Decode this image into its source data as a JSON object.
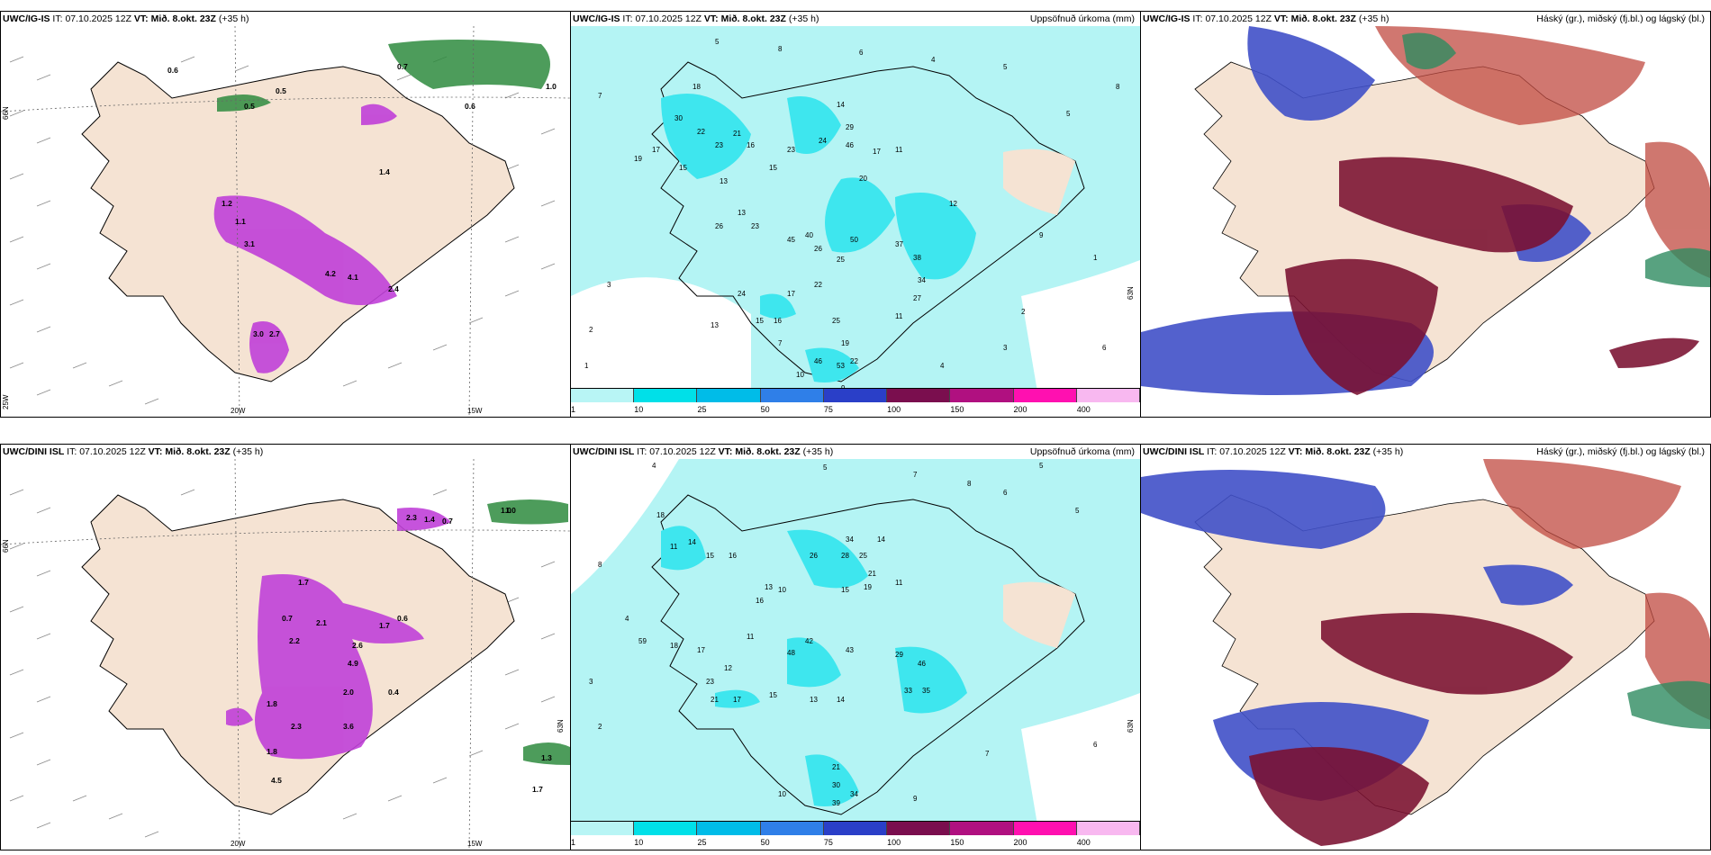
{
  "panels": [
    {
      "id": "p1",
      "model": "UWC/IG-IS",
      "init_label": "IT:",
      "init_time": "07.10.2025 12Z",
      "valid_label": "VT:",
      "valid_time": "Mið. 8.okt. 23Z",
      "lead": "(+35 h)",
      "subtitle": "",
      "lon_labels": [
        "20W",
        "15W"
      ],
      "lat_labels": [
        "66N",
        "25W"
      ],
      "values": [
        "1.2",
        "1.1",
        "3.1",
        "4.2",
        "4.1",
        "3.0",
        "2.7",
        "0.7",
        "0.6",
        "0.5",
        "1.0",
        "0.6",
        "0.5",
        "2.4",
        "1.4"
      ]
    },
    {
      "id": "p2",
      "model": "UWC/IG-IS",
      "init_label": "IT:",
      "init_time": "07.10.2025 12Z",
      "valid_label": "VT:",
      "valid_time": "Mið. 8.okt. 23Z",
      "lead": "(+35 h)",
      "subtitle": "Uppsöfnuð úrkoma (mm)",
      "lat_labels": [
        "63N"
      ],
      "values": [
        "7",
        "5",
        "8",
        "6",
        "4",
        "5",
        "18",
        "30",
        "22",
        "23",
        "21",
        "16",
        "15",
        "17",
        "19",
        "13",
        "15",
        "23",
        "14",
        "24",
        "29",
        "46",
        "17",
        "20",
        "13",
        "26",
        "23",
        "40",
        "45",
        "26",
        "25",
        "50",
        "37",
        "38",
        "34",
        "27",
        "22",
        "17",
        "24",
        "16",
        "15",
        "13",
        "11",
        "25",
        "19",
        "22",
        "46",
        "53",
        "10",
        "9",
        "7",
        "3",
        "2",
        "1",
        "4",
        "5",
        "6",
        "3",
        "2",
        "1",
        "8",
        "9",
        "11",
        "12"
      ]
    },
    {
      "id": "p3",
      "model": "UWC/IG-IS",
      "init_label": "IT:",
      "init_time": "07.10.2025 12Z",
      "valid_label": "VT:",
      "valid_time": "Mið. 8.okt. 23Z",
      "lead": "(+35 h)",
      "subtitle": "Háský (gr.), miðský (fj.bl.) og lágský (bl.)"
    },
    {
      "id": "p4",
      "model": "UWC/DINI ISL",
      "init_label": "IT:",
      "init_time": "07.10.2025 12Z",
      "valid_label": "VT:",
      "valid_time": "Mið. 8.okt. 23Z",
      "lead": "(+35 h)",
      "subtitle": "",
      "lon_labels": [
        "20W",
        "15W"
      ],
      "lat_labels": [
        "66N",
        "63N"
      ],
      "values": [
        "1.0",
        "2.3",
        "1.4",
        "0.7",
        "1.7",
        "0.7",
        "2.1",
        "1.7",
        "2.2",
        "2.6",
        "0.6",
        "4.9",
        "2.0",
        "0.4",
        "1.8",
        "2.3",
        "3.6",
        "1.8",
        "4.5",
        "1.3",
        "1.7",
        "1.0"
      ]
    },
    {
      "id": "p5",
      "model": "UWC/DINI ISL",
      "init_label": "IT:",
      "init_time": "07.10.2025 12Z",
      "valid_label": "VT:",
      "valid_time": "Mið. 8.okt. 23Z",
      "lead": "(+35 h)",
      "subtitle": "Uppsöfnuð úrkoma (mm)",
      "lat_labels": [
        "63N"
      ],
      "values": [
        "4",
        "5",
        "7",
        "8",
        "6",
        "5",
        "18",
        "11",
        "14",
        "15",
        "16",
        "13",
        "26",
        "34",
        "28",
        "25",
        "14",
        "21",
        "19",
        "11",
        "15",
        "16",
        "10",
        "17",
        "18",
        "48",
        "42",
        "43",
        "29",
        "46",
        "33",
        "35",
        "11",
        "12",
        "23",
        "21",
        "17",
        "13",
        "15",
        "14",
        "30",
        "39",
        "34",
        "21",
        "10",
        "2",
        "3",
        "4",
        "5",
        "6",
        "7",
        "8",
        "9",
        "59"
      ]
    },
    {
      "id": "p6",
      "model": "UWC/DINI ISL",
      "init_label": "IT:",
      "init_time": "07.10.2025 12Z",
      "valid_label": "VT:",
      "valid_time": "Mið. 8.okt. 23Z",
      "lead": "(+35 h)",
      "subtitle": "Háský (gr.), miðský (fj.bl.) og lágský (bl.)"
    }
  ],
  "colorbar": {
    "labels": [
      "1",
      "10",
      "25",
      "50",
      "75",
      "100",
      "150",
      "200",
      "400"
    ],
    "colors": [
      "#b8f5f5",
      "#00e0e8",
      "#00bce8",
      "#2f7fe8",
      "#2a3fc8",
      "#7a0e4e",
      "#b01080",
      "#ff10b0",
      "#f8b8f0"
    ]
  },
  "colors": {
    "land": "#f5e3d3",
    "sea_precip": "#b4f4f4",
    "precip_mid": "#3ee6ee",
    "ptype_purple": "#c040d8",
    "ptype_green": "#2e8b3e",
    "cloud_high": "#7a1030",
    "cloud_mid": "#c04a40",
    "cloud_low": "#4050c8"
  }
}
